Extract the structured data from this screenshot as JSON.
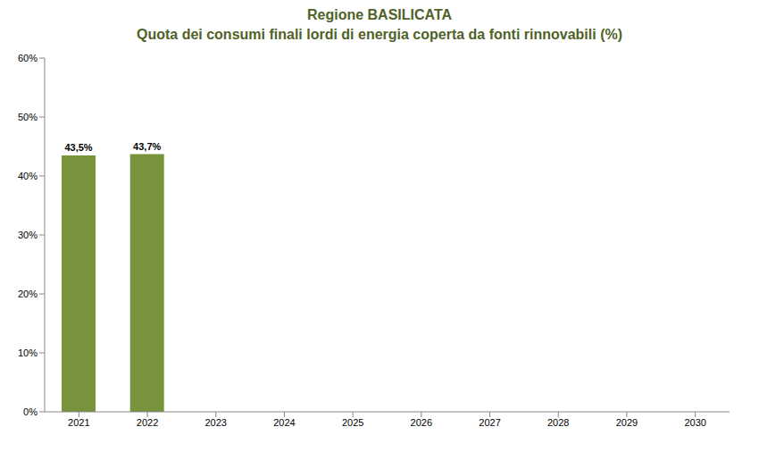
{
  "chart_data": {
    "type": "bar",
    "title": "Regione BASILICATA",
    "subtitle": "Quota dei consumi finali lordi di energia coperta da fonti rinnovabili (%)",
    "categories": [
      "2021",
      "2022",
      "2023",
      "2024",
      "2025",
      "2026",
      "2027",
      "2028",
      "2029",
      "2030"
    ],
    "values": [
      43.5,
      43.7,
      null,
      null,
      null,
      null,
      null,
      null,
      null,
      null
    ],
    "value_labels": [
      "43,5%",
      "43,7%",
      null,
      null,
      null,
      null,
      null,
      null,
      null,
      null
    ],
    "color": "#77933c",
    "ylim": [
      0,
      60
    ],
    "yticks": [
      {
        "value": 0,
        "label": "0%"
      },
      {
        "value": 10,
        "label": "10%"
      },
      {
        "value": 20,
        "label": "20%"
      },
      {
        "value": 30,
        "label": "30%"
      },
      {
        "value": 40,
        "label": "40%"
      },
      {
        "value": 50,
        "label": "50%"
      },
      {
        "value": 60,
        "label": "60%"
      }
    ],
    "grid": false,
    "data_labels": true
  }
}
